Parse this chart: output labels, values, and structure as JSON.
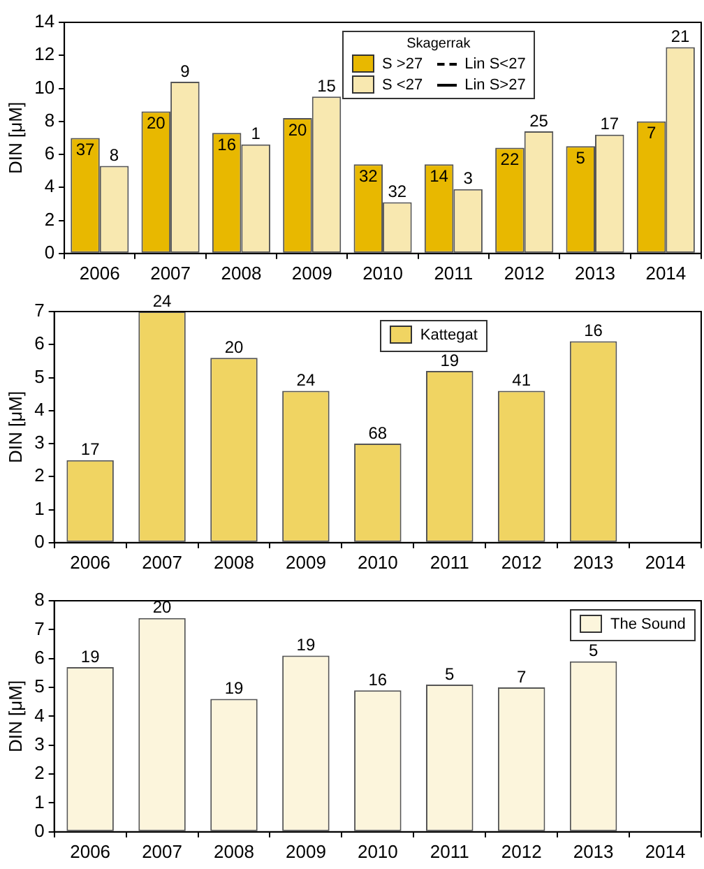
{
  "chart_data": [
    {
      "type": "bar",
      "ylabel": "DIN [μM]",
      "legend_title": "Skagerrak",
      "legend": "top",
      "grid": false,
      "categories": [
        "2006",
        "2007",
        "2008",
        "2009",
        "2010",
        "2011",
        "2012",
        "2013",
        "2014"
      ],
      "ylim": [
        0,
        14
      ],
      "yticks": [
        0,
        2,
        4,
        6,
        8,
        10,
        12,
        14
      ],
      "series": [
        {
          "name": "S >27",
          "color": "#e8b800",
          "values": [
            7.0,
            8.6,
            7.3,
            8.2,
            5.4,
            5.4,
            6.4,
            6.5,
            8.0
          ]
        },
        {
          "name": "S <27",
          "color": "#f8e8b0",
          "values": [
            5.3,
            10.4,
            6.6,
            9.5,
            3.1,
            3.9,
            7.4,
            7.2,
            12.5
          ]
        },
        {
          "name": "Lin S<27",
          "type": "line",
          "color": "#000000",
          "line_style": "dashed",
          "values": [
            null,
            null,
            null,
            null,
            null,
            null,
            null,
            null,
            null
          ]
        },
        {
          "name": "Lin S>27",
          "type": "line",
          "color": "#000000",
          "line_style": "solid",
          "values": [
            null,
            null,
            null,
            null,
            null,
            null,
            null,
            null,
            null
          ]
        }
      ],
      "annotations": [
        {
          "text": "37",
          "x": "2006",
          "y": 7.0
        },
        {
          "text": "20",
          "x": "2007",
          "y": 8.6
        },
        {
          "text": "16",
          "x": "2008",
          "y": 7.3
        },
        {
          "text": "20",
          "x": "2009",
          "y": 8.2
        },
        {
          "text": "32",
          "x": "2010",
          "y": 5.4
        },
        {
          "text": "14",
          "x": "2011",
          "y": 5.4
        },
        {
          "text": "22",
          "x": "2012",
          "y": 6.4
        },
        {
          "text": "5",
          "x": "2013",
          "y": 6.5
        },
        {
          "text": "7",
          "x": "2014",
          "y": 8.0
        },
        {
          "text": "8",
          "x": "2006",
          "y": 5.3
        },
        {
          "text": "9",
          "x": "2007",
          "y": 10.4
        },
        {
          "text": "1",
          "x": "2008",
          "y": 6.6
        },
        {
          "text": "15",
          "x": "2009",
          "y": 9.5
        },
        {
          "text": "32",
          "x": "2010",
          "y": 3.1
        },
        {
          "text": "3",
          "x": "2011",
          "y": 3.9
        },
        {
          "text": "25",
          "x": "2012",
          "y": 7.4
        },
        {
          "text": "17",
          "x": "2013",
          "y": 7.2
        },
        {
          "text": "21",
          "x": "2014",
          "y": 12.5
        }
      ]
    },
    {
      "type": "bar",
      "ylabel": "DIN [μM]",
      "legend": "top",
      "grid": false,
      "categories": [
        "2006",
        "2007",
        "2008",
        "2009",
        "2010",
        "2011",
        "2012",
        "2013",
        "2014"
      ],
      "ylim": [
        0,
        7
      ],
      "yticks": [
        0,
        1,
        2,
        3,
        4,
        5,
        6,
        7
      ],
      "series": [
        {
          "name": "Kattegat",
          "color": "#f0d462",
          "values": [
            2.5,
            7.0,
            5.6,
            4.6,
            3.0,
            5.2,
            4.6,
            6.1,
            null
          ]
        }
      ],
      "annotations": [
        {
          "text": "17",
          "x": "2006",
          "y": 2.5
        },
        {
          "text": "24",
          "x": "2007",
          "y": 7.0
        },
        {
          "text": "20",
          "x": "2008",
          "y": 5.6
        },
        {
          "text": "24",
          "x": "2009",
          "y": 4.6
        },
        {
          "text": "68",
          "x": "2010",
          "y": 3.0
        },
        {
          "text": "19",
          "x": "2011",
          "y": 5.2
        },
        {
          "text": "41",
          "x": "2012",
          "y": 4.6
        },
        {
          "text": "16",
          "x": "2013",
          "y": 6.1
        }
      ]
    },
    {
      "type": "bar",
      "ylabel": "DIN [μM]",
      "legend": "top right",
      "grid": false,
      "categories": [
        "2006",
        "2007",
        "2008",
        "2009",
        "2010",
        "2011",
        "2012",
        "2013",
        "2014"
      ],
      "ylim": [
        0,
        8
      ],
      "yticks": [
        0,
        1,
        2,
        3,
        4,
        5,
        6,
        7,
        8
      ],
      "series": [
        {
          "name": "The Sound",
          "color": "#fcf5dc",
          "values": [
            5.7,
            7.4,
            4.6,
            6.1,
            4.9,
            5.1,
            5.0,
            5.9,
            null
          ]
        }
      ],
      "annotations": [
        {
          "text": "19",
          "x": "2006",
          "y": 5.7
        },
        {
          "text": "20",
          "x": "2007",
          "y": 7.4
        },
        {
          "text": "19",
          "x": "2008",
          "y": 4.6
        },
        {
          "text": "19",
          "x": "2009",
          "y": 6.1
        },
        {
          "text": "16",
          "x": "2010",
          "y": 4.9
        },
        {
          "text": "5",
          "x": "2011",
          "y": 5.1
        },
        {
          "text": "7",
          "x": "2012",
          "y": 5.0
        },
        {
          "text": "5",
          "x": "2013",
          "y": 5.9
        }
      ]
    }
  ]
}
